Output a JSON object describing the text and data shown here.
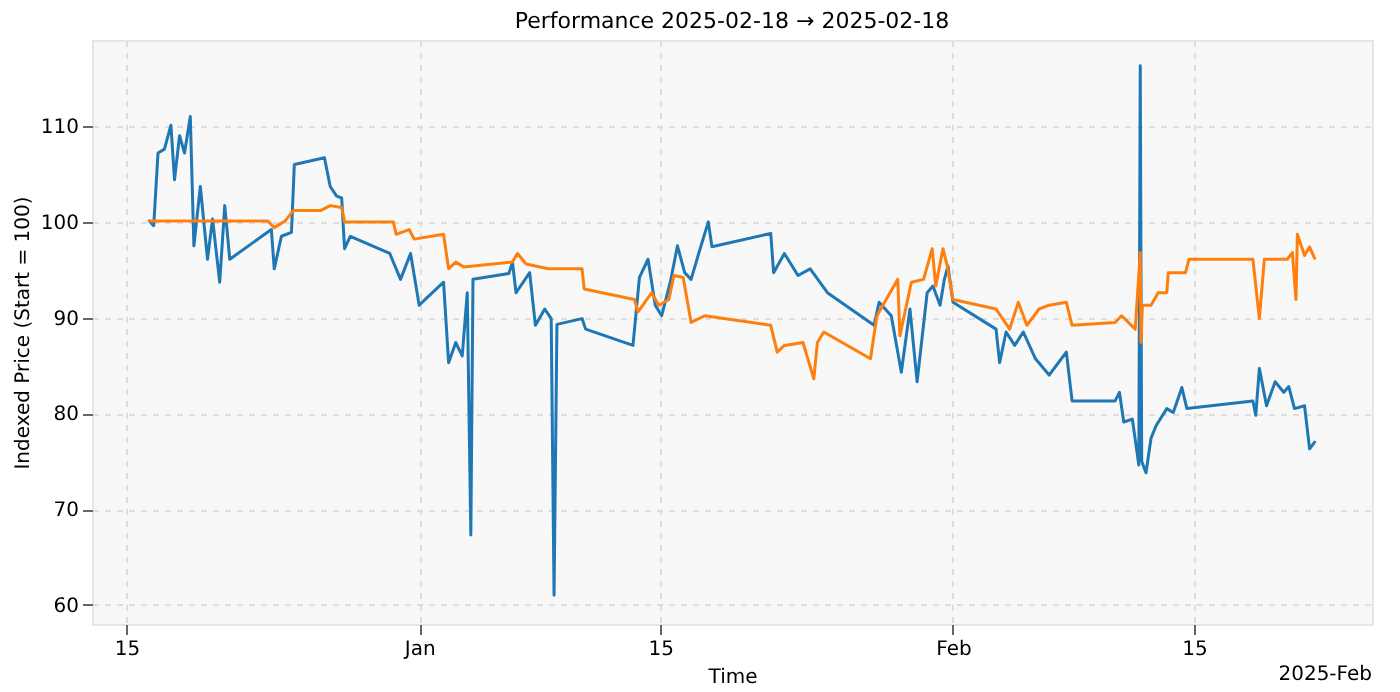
{
  "chart_data": {
    "type": "line",
    "title": "Performance 2025-02-18 → 2025-02-18",
    "xlabel": "Time",
    "ylabel": "Indexed Price (Start = 100)",
    "annotations": [
      "2025-Feb"
    ],
    "xlim": [
      "2024-12-13",
      "2025-02-25T08:00"
    ],
    "ylim": [
      58,
      119
    ],
    "xticks": [
      {
        "value": "2024-12-15",
        "label": "15"
      },
      {
        "value": "2025-01-01",
        "label": "Jan"
      },
      {
        "value": "2025-01-15",
        "label": "15"
      },
      {
        "value": "2025-02-01",
        "label": "Feb"
      },
      {
        "value": "2025-02-15",
        "label": "15"
      }
    ],
    "yticks": [
      60,
      70,
      80,
      90,
      100,
      110
    ],
    "grid": true,
    "series": [
      {
        "color": "#1f77b4",
        "x": [
          "2024-12-16T08:00",
          "2024-12-16T14:00",
          "2024-12-16T20:00",
          "2024-12-17T05:00",
          "2024-12-17T14:00",
          "2024-12-17T19:00",
          "2024-12-18T02:00",
          "2024-12-18T09:00",
          "2024-12-18T17:00",
          "2024-12-18T22:00",
          "2024-12-19T07:00",
          "2024-12-19T17:00",
          "2024-12-20T00:00",
          "2024-12-20T10:00",
          "2024-12-20T17:00",
          "2024-12-21T00:00",
          "2024-12-23T10:00",
          "2024-12-23T14:00",
          "2024-12-24T00:00",
          "2024-12-24T14:00",
          "2024-12-24T18:00",
          "2024-12-26T12:00",
          "2024-12-26T20:00",
          "2024-12-27T05:00",
          "2024-12-27T12:00",
          "2024-12-27T16:00",
          "2024-12-28T00:00",
          "2024-12-30T07:00",
          "2024-12-30T22:00",
          "2024-12-31T12:00",
          "2025-01-01T00:00",
          "2025-01-02T10:00",
          "2025-01-02T17:00",
          "2025-01-03T03:00",
          "2025-01-03T12:00",
          "2025-01-03T19:00",
          "2025-01-04T00:00",
          "2025-01-04T03:00",
          "2025-01-06T05:00",
          "2025-01-06T10:00",
          "2025-01-06T15:00",
          "2025-01-07T10:00",
          "2025-01-07T18:00",
          "2025-01-08T07:00",
          "2025-01-08T16:00",
          "2025-01-08T20:00",
          "2025-01-09T00:00",
          "2025-01-10T11:00",
          "2025-01-10T16:00",
          "2025-01-13T10:00",
          "2025-01-13T19:00",
          "2025-01-14T07:00",
          "2025-01-14T17:00",
          "2025-01-15T02:00",
          "2025-01-15T14:00",
          "2025-01-16T00:00",
          "2025-01-16T10:00",
          "2025-01-16T19:00",
          "2025-01-17T06:00",
          "2025-01-17T19:00",
          "2025-01-18T00:00",
          "2025-01-21T10:00",
          "2025-01-21T14:00",
          "2025-01-22T05:00",
          "2025-01-23T00:00",
          "2025-01-23T17:00",
          "2025-01-24T17:00",
          "2025-01-27T10:00",
          "2025-01-27T17:00",
          "2025-01-28T10:00",
          "2025-01-29T00:00",
          "2025-01-29T12:00",
          "2025-01-29T22:00",
          "2025-01-30T12:00",
          "2025-01-30T20:00",
          "2025-01-31T06:00",
          "2025-01-31T12:00",
          "2025-01-31T17:00",
          "2025-02-01T00:00",
          "2025-02-03T12:00",
          "2025-02-03T17:00",
          "2025-02-04T02:00",
          "2025-02-04T14:00",
          "2025-02-05T02:00",
          "2025-02-05T19:00",
          "2025-02-06T14:00",
          "2025-02-07T00:00",
          "2025-02-07T14:00",
          "2025-02-07T22:00",
          "2025-02-10T10:00",
          "2025-02-10T16:00",
          "2025-02-10T22:00",
          "2025-02-11T10:00",
          "2025-02-11T19:00",
          "2025-02-11T21:00",
          "2025-02-11T23:00",
          "2025-02-12T05:00",
          "2025-02-12T12:00",
          "2025-02-12T19:00",
          "2025-02-13T10:00",
          "2025-02-13T19:00",
          "2025-02-14T07:00",
          "2025-02-14T14:00",
          "2025-02-18T10:00",
          "2025-02-18T14:00",
          "2025-02-18T19:00",
          "2025-02-19T05:00",
          "2025-02-19T17:00",
          "2025-02-20T05:00",
          "2025-02-20T12:00",
          "2025-02-20T20:00",
          "2025-02-21T10:00",
          "2025-02-21T17:00",
          "2025-02-22T00:00"
        ],
        "values": [
          100.1,
          99.6,
          107.2,
          107.6,
          110.1,
          104.4,
          109,
          107.2,
          111,
          97.5,
          103.7,
          96.1,
          100.3,
          93.7,
          101.7,
          96.1,
          99.2,
          95.1,
          98.5,
          98.9,
          106,
          106.7,
          103.7,
          102.7,
          102.5,
          97.2,
          98.5,
          96.7,
          94,
          96.7,
          91.3,
          93.7,
          85.3,
          87.4,
          86,
          92.6,
          67.3,
          94,
          94.6,
          95.8,
          92.6,
          94.7,
          89.2,
          90.9,
          89.9,
          61,
          89.3,
          89.9,
          88.8,
          87.1,
          94.2,
          96.1,
          91.3,
          90.2,
          93.7,
          97.5,
          94.7,
          94,
          96.8,
          100,
          97.4,
          98.8,
          94.7,
          96.7,
          94.4,
          95.1,
          92.6,
          89.2,
          91.6,
          90.2,
          84.3,
          90.9,
          83.3,
          92.6,
          93.3,
          91.3,
          94,
          95.4,
          91.6,
          88.8,
          85.3,
          88.5,
          87.1,
          88.5,
          85.7,
          84,
          85,
          86.4,
          81.3,
          81.3,
          82.2,
          79.1,
          79.4,
          74.6,
          116.3,
          75,
          73.8,
          77.4,
          78.7,
          80.5,
          80.1,
          82.7,
          80.5,
          81.3,
          79.8,
          84.7,
          80.8,
          83.3,
          82.2,
          82.8,
          80.5,
          80.8,
          76.3,
          77
        ]
      },
      {
        "color": "#ff7f0e",
        "x": [
          "2024-12-16T08:00",
          "2024-12-23T05:00",
          "2024-12-23T14:00",
          "2024-12-24T05:00",
          "2024-12-24T17:00",
          "2024-12-26T07:00",
          "2024-12-26T20:00",
          "2024-12-27T12:00",
          "2024-12-27T16:00",
          "2024-12-30T12:00",
          "2024-12-30T16:00",
          "2024-12-31T10:00",
          "2024-12-31T17:00",
          "2025-01-02T10:00",
          "2025-01-02T17:00",
          "2025-01-03T03:00",
          "2025-01-03T14:00",
          "2025-01-06T10:00",
          "2025-01-06T17:00",
          "2025-01-07T05:00",
          "2025-01-08T12:00",
          "2025-01-10T11:00",
          "2025-01-10T14:00",
          "2025-01-13T12:00",
          "2025-01-13T17:00",
          "2025-01-14T12:00",
          "2025-01-14T22:00",
          "2025-01-15T12:00",
          "2025-01-15T19:00",
          "2025-01-16T08:00",
          "2025-01-16T19:00",
          "2025-01-17T14:00",
          "2025-01-21T10:00",
          "2025-01-21T19:00",
          "2025-01-22T05:00",
          "2025-01-23T07:00",
          "2025-01-23T22:00",
          "2025-01-24T03:00",
          "2025-01-24T12:00",
          "2025-01-27T05:00",
          "2025-01-27T14:00",
          "2025-01-28T19:00",
          "2025-01-28T22:00",
          "2025-01-29T14:00",
          "2025-01-30T07:00",
          "2025-01-30T19:00",
          "2025-01-31T00:00",
          "2025-01-31T10:00",
          "2025-01-31T16:00",
          "2025-02-01T00:00",
          "2025-02-03T12:00",
          "2025-02-04T07:00",
          "2025-02-04T19:00",
          "2025-02-05T07:00",
          "2025-02-06T00:00",
          "2025-02-06T14:00",
          "2025-02-07T14:00",
          "2025-02-07T22:00",
          "2025-02-10T10:00",
          "2025-02-10T19:00",
          "2025-02-11T14:00",
          "2025-02-11T21:00",
          "2025-02-11T22:00",
          "2025-02-12T00:00",
          "2025-02-12T12:00",
          "2025-02-12T22:00",
          "2025-02-13T10:00",
          "2025-02-13T12:00",
          "2025-02-14T12:00",
          "2025-02-14T17:00",
          "2025-02-18T10:00",
          "2025-02-18T19:00",
          "2025-02-19T02:00",
          "2025-02-20T10:00",
          "2025-02-20T17:00",
          "2025-02-20T22:00",
          "2025-02-21T00:00",
          "2025-02-21T10:00",
          "2025-02-21T17:00",
          "2025-02-22T00:00"
        ],
        "values": [
          100.1,
          100.1,
          99.4,
          100.1,
          101.2,
          101.2,
          101.7,
          101.5,
          100,
          100,
          98.7,
          99.2,
          98.2,
          98.7,
          95.1,
          95.8,
          95.3,
          95.8,
          96.7,
          95.6,
          95.1,
          95.1,
          93,
          91.9,
          90.6,
          92.6,
          91.3,
          91.9,
          94.4,
          94.2,
          89.5,
          90.2,
          89.2,
          86.4,
          87.1,
          87.4,
          83.6,
          87.4,
          88.5,
          85.7,
          90.2,
          94,
          88.1,
          93.7,
          94,
          97.2,
          93.3,
          97.2,
          95.4,
          91.9,
          90.9,
          88.8,
          91.6,
          89.2,
          90.9,
          91.3,
          91.6,
          89.2,
          89.5,
          90.2,
          88.8,
          96.8,
          87.4,
          91.3,
          91.3,
          92.6,
          92.6,
          94.7,
          94.7,
          96.1,
          96.1,
          89.9,
          96.1,
          96.1,
          96.8,
          91.9,
          98.7,
          96.5,
          97.4,
          96.2
        ]
      }
    ]
  }
}
